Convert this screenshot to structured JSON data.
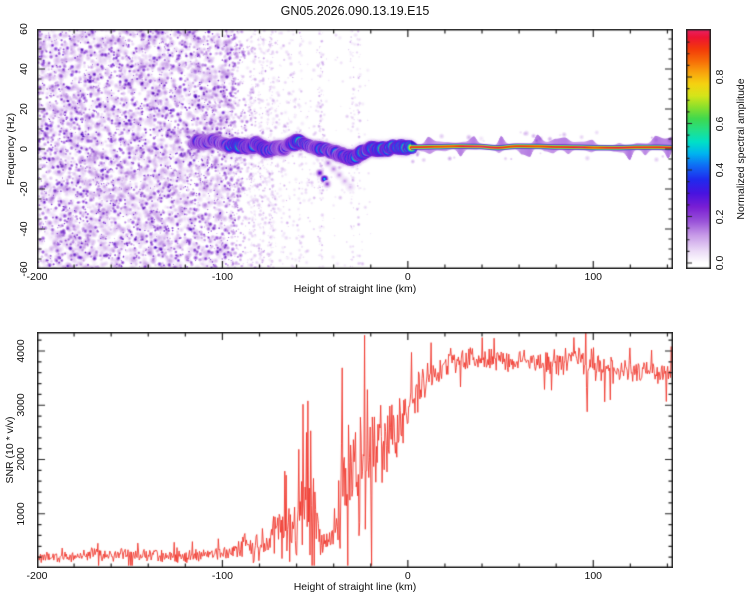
{
  "title": "GN05.2026.090.13.19.E15",
  "axes": {
    "top": {
      "ylabel": "Frequency (Hz)",
      "xlabel": "Height of straight line (km)",
      "x_tick_labels": [
        "-200",
        "-100",
        "0",
        "100"
      ],
      "y_tick_labels": [
        "60",
        "40",
        "20",
        "0",
        "-20",
        "-40",
        "-60"
      ],
      "x_range": [
        -200,
        143
      ],
      "y_range": [
        -60,
        60
      ]
    },
    "bottom": {
      "ylabel": "SNR (10 * v/v)",
      "xlabel": "Height of straight line (km)",
      "x_tick_labels": [
        "-200",
        "-100",
        "0",
        "100"
      ],
      "y_tick_labels": [
        "1000",
        "2000",
        "3000",
        "4000"
      ],
      "x_range": [
        -200,
        143
      ],
      "y_range": [
        0,
        4350
      ]
    },
    "colorbar": {
      "label": "Normalized spectral amplitude",
      "tick_labels": [
        "0.0",
        "0.2",
        "0.4",
        "0.6",
        "0.8"
      ],
      "range": [
        0,
        1
      ]
    }
  },
  "chart_data": [
    {
      "type": "heatmap",
      "title": "Doppler frequency spectrogram",
      "x_range": [
        -200,
        143
      ],
      "y_range": [
        -60,
        60
      ],
      "colormap_stops": [
        [
          0.0,
          "#ffffff"
        ],
        [
          0.05,
          "#ecdcf7"
        ],
        [
          0.12,
          "#c79ae8"
        ],
        [
          0.18,
          "#9952d9"
        ],
        [
          0.24,
          "#7a1fd4"
        ],
        [
          0.3,
          "#4813e0"
        ],
        [
          0.36,
          "#1f2bee"
        ],
        [
          0.42,
          "#0f6ef5"
        ],
        [
          0.47,
          "#00b4f0"
        ],
        [
          0.52,
          "#00e0c8"
        ],
        [
          0.57,
          "#22e08a"
        ],
        [
          0.62,
          "#3fd94f"
        ],
        [
          0.67,
          "#8ae02c"
        ],
        [
          0.72,
          "#d6e51a"
        ],
        [
          0.77,
          "#f5d211"
        ],
        [
          0.82,
          "#f9a30d"
        ],
        [
          0.87,
          "#f76b08"
        ],
        [
          0.92,
          "#f33a0a"
        ],
        [
          0.97,
          "#ee1433"
        ],
        [
          1.0,
          "#e91f5e"
        ]
      ],
      "noise_region": {
        "x_start": -200,
        "x_end": -95,
        "fade_end": -86
      },
      "sparse_bands": [
        {
          "x0": -96,
          "x1": -60,
          "count": 380,
          "vmax": 0.13
        },
        {
          "x0": -60,
          "x1": -20,
          "count": 120,
          "vmax": 0.1
        }
      ],
      "near_trace_band": {
        "x0": -112,
        "x1": -45,
        "f0": -26,
        "f1": 26,
        "count": 260
      },
      "streaks": [
        {
          "km": -84,
          "w": 4,
          "n": 160
        },
        {
          "km": -79,
          "w": 3,
          "n": 120
        },
        {
          "km": -74,
          "w": 3,
          "n": 110
        },
        {
          "km": -58,
          "w": 2,
          "n": 40
        },
        {
          "km": -47,
          "w": 3,
          "n": 95
        },
        {
          "km": -30,
          "w": 2.5,
          "n": 70
        },
        {
          "km": -26.5,
          "w": 2,
          "n": 55
        }
      ],
      "trace_points": [
        [
          -116,
          2.5,
          0.5
        ],
        [
          -112,
          4,
          0.6
        ],
        [
          -108,
          3,
          0.55
        ],
        [
          -105,
          4.5,
          0.6
        ],
        [
          -101,
          3,
          0.55
        ],
        [
          -97,
          1.5,
          0.6
        ],
        [
          -93,
          2.5,
          0.95
        ],
        [
          -89.5,
          1.5,
          0.9
        ],
        [
          -86,
          1,
          0.7
        ],
        [
          -82,
          2.5,
          0.65
        ],
        [
          -78,
          0.5,
          0.85
        ],
        [
          -74.5,
          -1,
          0.75
        ],
        [
          -70.6,
          1,
          0.65
        ],
        [
          -66.9,
          0,
          0.6
        ],
        [
          -63,
          2.5,
          0.65
        ],
        [
          -59.3,
          4,
          0.9
        ],
        [
          -55.5,
          3,
          0.75
        ],
        [
          -51.8,
          1,
          0.6
        ],
        [
          -48,
          0.5,
          0.7
        ],
        [
          -44.2,
          0,
          0.8
        ],
        [
          -40.4,
          -1.5,
          0.65
        ],
        [
          -36.7,
          -3,
          0.7
        ],
        [
          -32.9,
          -4,
          0.75
        ],
        [
          -29.1,
          -4.5,
          0.8
        ],
        [
          -26,
          -3,
          0.7
        ],
        [
          -24.3,
          -1.5,
          0.9
        ],
        [
          -21.6,
          -0.5,
          0.75
        ],
        [
          -18.9,
          0.5,
          0.9
        ],
        [
          -16.2,
          -0.5,
          0.8
        ],
        [
          -13.5,
          0.5,
          0.95
        ],
        [
          -10.8,
          0,
          0.85
        ],
        [
          -8.1,
          1,
          0.95
        ],
        [
          -5.4,
          0.5,
          0.9
        ],
        [
          -2.7,
          1,
          0.95
        ],
        [
          0,
          1,
          0.9
        ],
        [
          3,
          1,
          0.95
        ]
      ],
      "sub_blobs": [
        [
          -47.5,
          -12,
          0.28
        ],
        [
          -45,
          -15,
          0.5
        ],
        [
          -43.5,
          -17.5,
          0.2
        ],
        [
          -43,
          -7,
          0.15
        ],
        [
          -40,
          -10,
          0.13
        ],
        [
          -37,
          -13,
          0.12
        ],
        [
          -34,
          -16,
          0.1
        ],
        [
          -31,
          -19,
          0.08
        ]
      ],
      "stripe": {
        "x_start": 2,
        "x_end": 143,
        "center_hz": 1.0
      }
    },
    {
      "type": "line",
      "name": "SNR",
      "color": "#f03127",
      "x_range": [
        -200,
        143
      ],
      "y_range": [
        0,
        4350
      ],
      "envelope": [
        [
          -200,
          230,
          150
        ],
        [
          -170,
          230,
          150
        ],
        [
          -140,
          235,
          150
        ],
        [
          -120,
          240,
          160
        ],
        [
          -105,
          250,
          170
        ],
        [
          -95,
          300,
          220
        ],
        [
          -88,
          380,
          300
        ],
        [
          -80,
          420,
          350
        ],
        [
          -74,
          500,
          450
        ],
        [
          -68,
          750,
          800
        ],
        [
          -64,
          650,
          600
        ],
        [
          -60,
          700,
          700
        ],
        [
          -57,
          900,
          1300
        ],
        [
          -54,
          1100,
          1900
        ],
        [
          -51,
          900,
          1400
        ],
        [
          -48,
          500,
          400
        ],
        [
          -45,
          420,
          300
        ],
        [
          -42,
          400,
          300
        ],
        [
          -39,
          600,
          700
        ],
        [
          -37,
          1200,
          1500
        ],
        [
          -34,
          1500,
          1600
        ],
        [
          -31,
          1600,
          1500
        ],
        [
          -28,
          1700,
          1500
        ],
        [
          -25,
          1800,
          1600
        ],
        [
          -23,
          2000,
          1900
        ],
        [
          -20,
          1900,
          1300
        ],
        [
          -17,
          2100,
          1200
        ],
        [
          -14,
          2200,
          1100
        ],
        [
          -11,
          2300,
          1000
        ],
        [
          -8,
          2500,
          900
        ],
        [
          -5,
          2600,
          800
        ],
        [
          -2,
          2750,
          700
        ],
        [
          2,
          3000,
          650
        ],
        [
          6,
          3250,
          550
        ],
        [
          10,
          3450,
          450
        ],
        [
          14,
          3600,
          380
        ],
        [
          18,
          3700,
          320
        ],
        [
          24,
          3820,
          280
        ],
        [
          32,
          3870,
          260
        ],
        [
          45,
          3850,
          260
        ],
        [
          60,
          3820,
          250
        ],
        [
          75,
          3780,
          260
        ],
        [
          90,
          3800,
          300
        ],
        [
          96,
          3750,
          600
        ],
        [
          100,
          3700,
          400
        ],
        [
          107,
          3650,
          300
        ],
        [
          115,
          3680,
          280
        ],
        [
          125,
          3620,
          260
        ],
        [
          135,
          3600,
          280
        ],
        [
          143,
          3640,
          300
        ]
      ],
      "spikes": [
        {
          "km": -54,
          "snr": 3080
        },
        {
          "km": -23.2,
          "snr": 4290
        },
        {
          "km": 96,
          "snr": 4430
        },
        {
          "km": 96.8,
          "snr": 2880
        }
      ]
    }
  ]
}
